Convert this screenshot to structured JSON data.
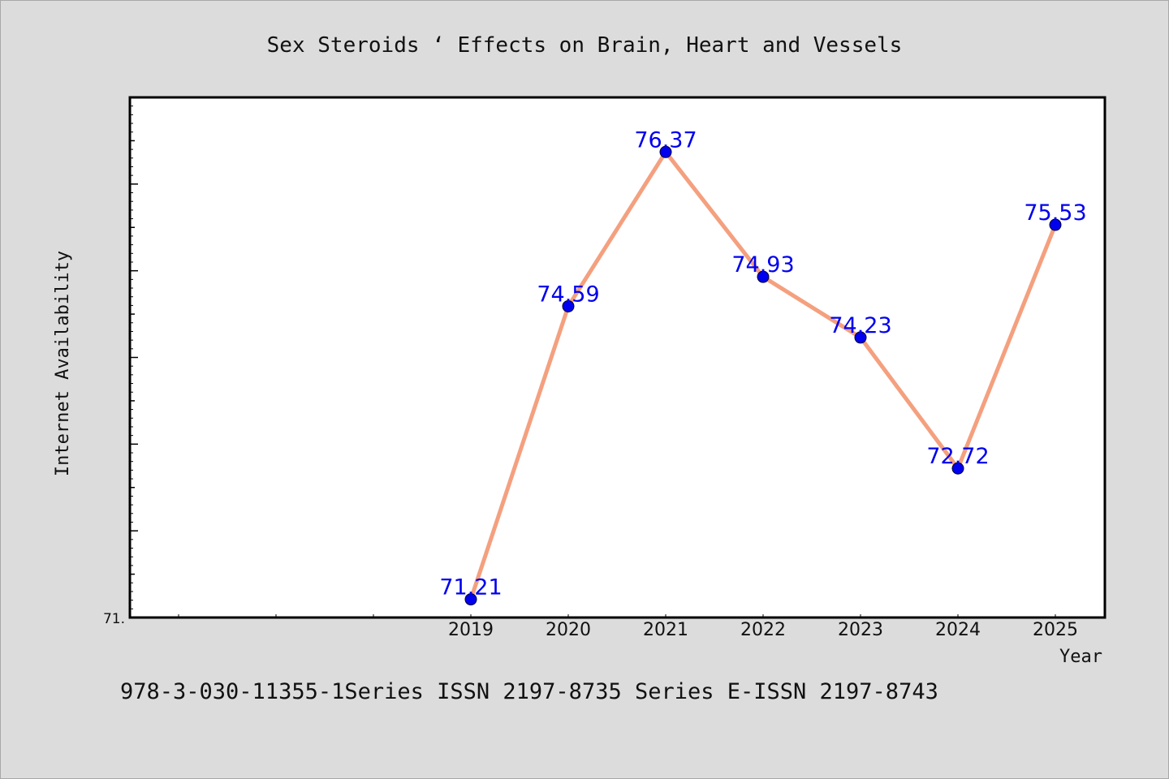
{
  "chart_data": {
    "type": "line",
    "title": "Sex Steroids ‘ Effects on Brain, Heart and Vessels",
    "xlabel": "Year",
    "ylabel": "Internet Availability",
    "x": [
      "2019",
      "2020",
      "2021",
      "2022",
      "2023",
      "2024",
      "2025"
    ],
    "series": [
      {
        "values": [
          71.21,
          74.59,
          76.37,
          74.93,
          74.23,
          72.72,
          75.53
        ],
        "labels": [
          "71.21",
          "74.59",
          "76.37",
          "74.93",
          "74.23",
          "72.72",
          "75.53"
        ]
      }
    ],
    "y_tick_label": "71.",
    "ylim": [
      71,
      77
    ],
    "grid": false,
    "legend": "none",
    "line_color": "#f4a07f",
    "marker_color": "#0000ee",
    "label_color": "#0000ee"
  },
  "footer": {
    "text": "978-3-030-11355-1Series ISSN 2197-8735 Series E-ISSN 2197-8743"
  }
}
